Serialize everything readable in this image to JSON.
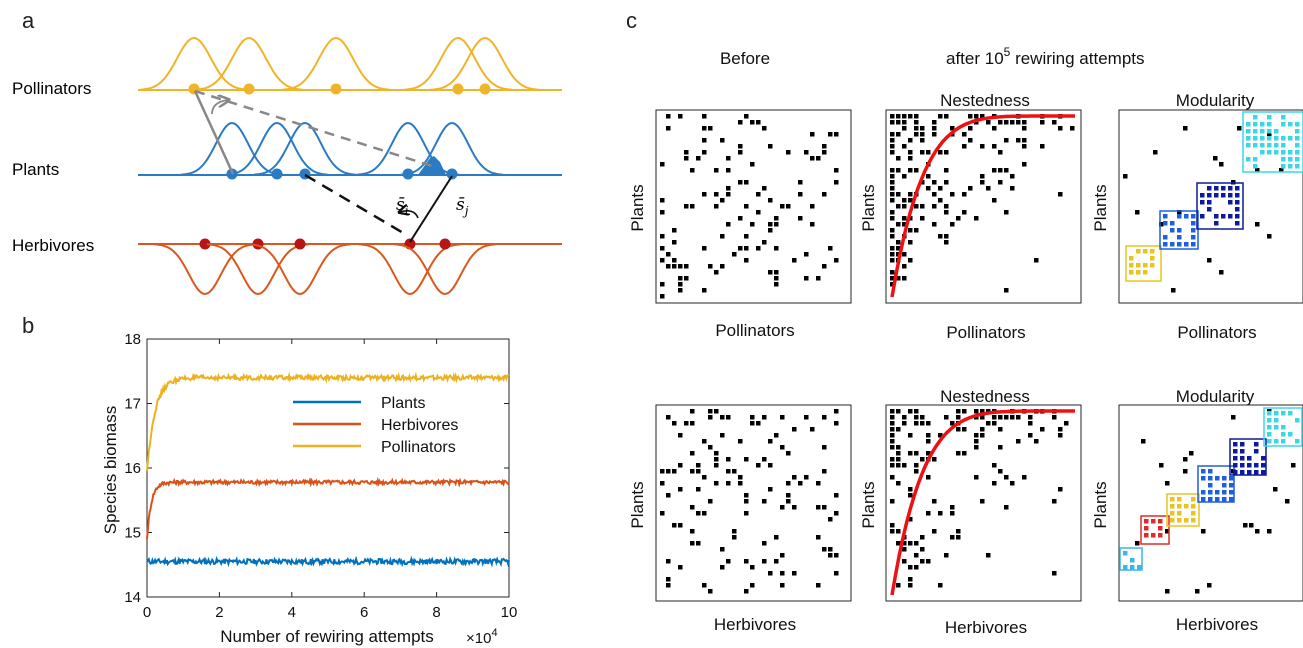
{
  "panel_labels": {
    "a": "a",
    "b": "b",
    "c": "c"
  },
  "panel_a": {
    "rows": [
      "Pollinators",
      "Plants",
      "Herbivores"
    ],
    "symbol_i": "s̄",
    "symbol_i_sub": "i",
    "symbol_j": "s̄",
    "symbol_j_sub": "j",
    "colors": {
      "pollinators": "#F0B429",
      "plants": "#2A7BC4",
      "herbivores": "#D9581E",
      "herbivore_dot": "#B81414"
    }
  },
  "panel_c": {
    "header_before": "Before",
    "header_after_prefix": "after 10",
    "header_after_exp": "5",
    "header_after_suffix": " rewiring attempts",
    "titles": [
      "Nestedness",
      "Modularity",
      "Nestedness",
      "Modularity"
    ],
    "ylabel": "Plants",
    "xlabel_top": "Pollinators",
    "xlabel_bottom": "Herbivores"
  },
  "chart_data": {
    "type": "line",
    "xlabel": "Number of rewiring attempts",
    "x_multiplier": "×10",
    "x_multiplier_exp": "4",
    "ylabel": "Species biomass",
    "xlim": [
      0,
      10
    ],
    "ylim": [
      14,
      18
    ],
    "xticks": [
      "0",
      "2",
      "4",
      "6",
      "8",
      "10"
    ],
    "yticks": [
      "14",
      "15",
      "16",
      "17",
      "18"
    ],
    "legend_position": "right",
    "series": [
      {
        "name": "Plants",
        "color": "#0072BD",
        "start": 14.55,
        "plateau": 14.55,
        "tau": 0.06,
        "noise": 0.04
      },
      {
        "name": "Herbivores",
        "color": "#D95319",
        "start": 14.9,
        "plateau": 15.78,
        "tau": 0.12,
        "noise": 0.03
      },
      {
        "name": "Pollinators",
        "color": "#EDB120",
        "start": 15.95,
        "plateau": 17.4,
        "tau": 0.22,
        "noise": 0.035
      }
    ]
  }
}
